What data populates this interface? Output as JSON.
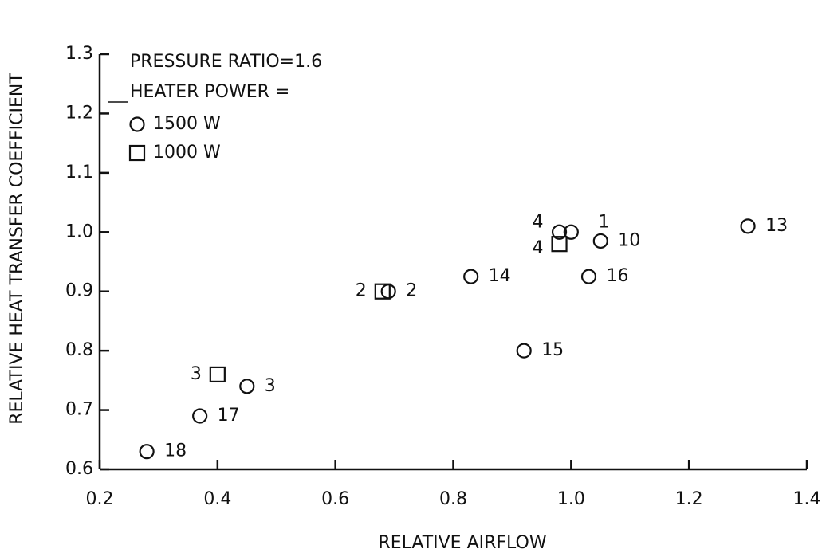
{
  "chart_data": {
    "type": "scatter",
    "xlabel": "RELATIVE AIRFLOW",
    "ylabel": "RELATIVE HEAT TRANSFER COEFFICIENT",
    "annotations": [
      "PRESSURE RATIO=1.6",
      "HEATER POWER ="
    ],
    "xlim": [
      0.2,
      1.4
    ],
    "xticks": [
      0.2,
      0.4,
      0.6,
      0.8,
      {
        "value": 1,
        "label": "1.0"
      },
      1.2,
      1.4
    ],
    "ylim": [
      0.6,
      1.3
    ],
    "yticks": [
      0.6,
      0.7,
      0.8,
      0.9,
      {
        "value": 1,
        "label": "1.0"
      },
      1.1,
      1.2,
      1.3
    ],
    "series": [
      {
        "name": "1500 W",
        "marker": "circle",
        "color": "#111111",
        "x": [
          1.0,
          0.98,
          1.05,
          1.3,
          0.83,
          1.03,
          0.69,
          0.92,
          0.45,
          0.37,
          0.28
        ],
        "values": [
          1.0,
          1.0,
          0.985,
          1.01,
          0.925,
          0.925,
          0.9,
          0.8,
          0.74,
          0.69,
          0.63
        ],
        "labels": [
          "1",
          "4",
          "10",
          "13",
          "14",
          "16",
          "2",
          "15",
          "3",
          "17",
          "18"
        ]
      },
      {
        "name": "1000 W",
        "marker": "square",
        "color": "#111111",
        "x": [
          0.98,
          0.68,
          0.4
        ],
        "values": [
          0.98,
          0.9,
          0.76
        ],
        "labels": [
          "4",
          "2",
          "3"
        ]
      }
    ]
  }
}
